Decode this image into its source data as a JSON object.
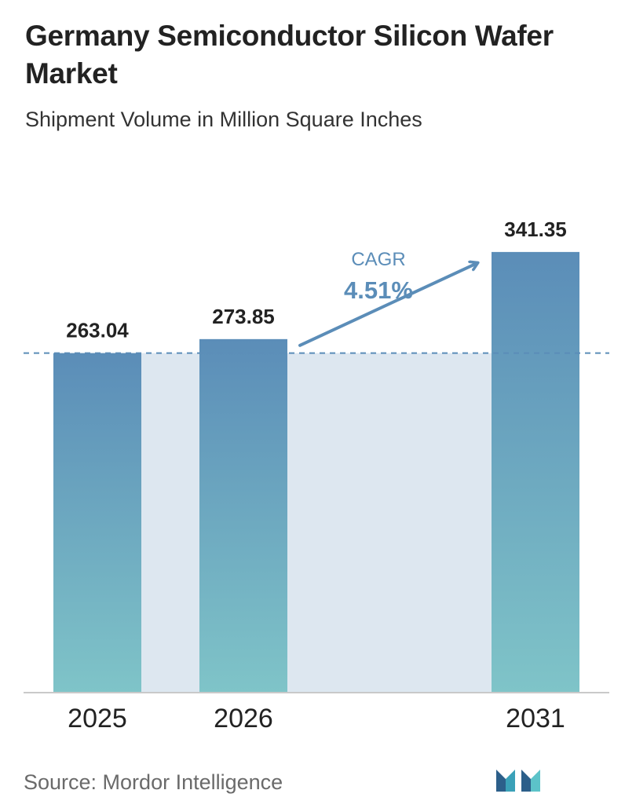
{
  "header": {
    "title": "Germany Semiconductor Silicon Wafer Market",
    "subtitle": "Shipment Volume in Million Square Inches"
  },
  "chart_data": {
    "type": "bar",
    "categories": [
      "2025",
      "2026",
      "2031"
    ],
    "values": [
      263.04,
      273.85,
      341.35
    ],
    "value_labels": [
      "263.04",
      "273.85",
      "341.35"
    ],
    "title": "Germany Semiconductor Silicon Wafer Market",
    "subtitle": "Shipment Volume in Million Square Inches",
    "xlabel": "",
    "ylabel": "",
    "ylim": [
      0,
      365
    ],
    "grid": false,
    "reference_line": {
      "value": 263.04,
      "style": "dashed"
    },
    "annotation": {
      "label": "CAGR",
      "value": "4.51%"
    },
    "colors": {
      "bar_top": "#5b8db8",
      "bar_bottom": "#7fc4c8",
      "shaded_band": "#dde7f0",
      "arrow": "#5b8db8",
      "dashed_line": "#5b8db8",
      "axis": "#c9c9c9"
    }
  },
  "footer": {
    "source": "Source:  Mordor Intelligence",
    "logo_icon": "mordor-intelligence-logo-icon"
  }
}
